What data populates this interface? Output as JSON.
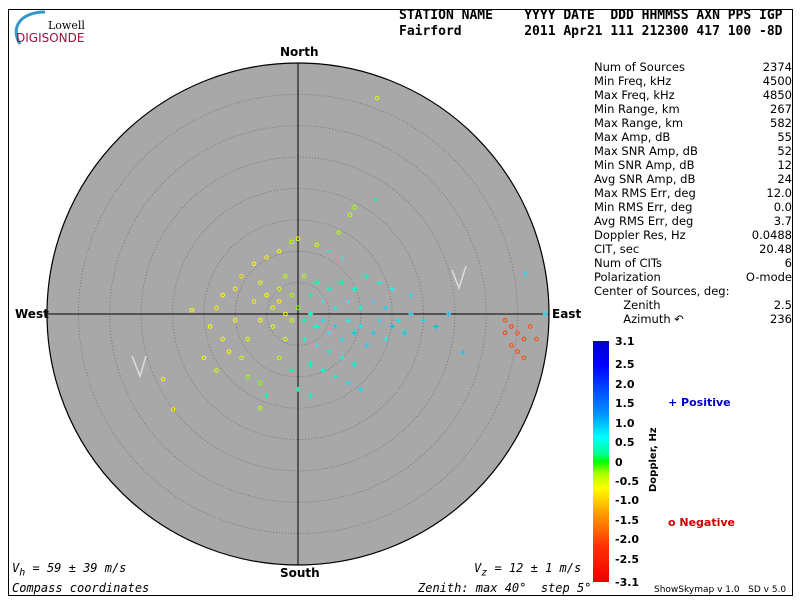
{
  "logo": {
    "line1": "Lowell",
    "line2": "DIGISONDE"
  },
  "header": {
    "labels": "STATION NAME    YYYY DATE  DDD HHMMSS AXN PPS IGP",
    "values": "Fairford        2011 Apr21 111 212300 417 100 -8D"
  },
  "stats": [
    {
      "label": "Num of Sources",
      "value": "2374"
    },
    {
      "label": "Min Freq, kHz",
      "value": "4500"
    },
    {
      "label": "Max Freq, kHz",
      "value": "4850"
    },
    {
      "label": "Min Range, km",
      "value": "267"
    },
    {
      "label": "Max Range, km",
      "value": "582"
    },
    {
      "label": "Max Amp, dB",
      "value": "55"
    },
    {
      "label": "Max SNR Amp, dB",
      "value": "52"
    },
    {
      "label": "Min SNR Amp, dB",
      "value": "12"
    },
    {
      "label": "Avg SNR Amp, dB",
      "value": "24"
    },
    {
      "label": "Max RMS Err, deg",
      "value": "12.0"
    },
    {
      "label": "Min RMS Err, deg",
      "value": "0.0"
    },
    {
      "label": "Avg RMS Err, deg",
      "value": "3.7"
    },
    {
      "label": "Doppler Res, Hz",
      "value": "0.0488"
    },
    {
      "label": "CIT, sec",
      "value": "20.48"
    },
    {
      "label": "Num of CITs",
      "value": "6"
    },
    {
      "label": "Polarization",
      "value": "O-mode"
    },
    {
      "label": "Center of Sources, deg:",
      "value": ""
    },
    {
      "label": "        Zenith",
      "value": "2.5"
    },
    {
      "label": "        Azimuth ↶",
      "value": "236"
    }
  ],
  "compass": {
    "north": "North",
    "south": "South",
    "east": "East",
    "west": "West"
  },
  "footer": {
    "vh": "V",
    "vh_sub": "h",
    "vh_val": " = 59 ± 39 m/s",
    "vz": "V",
    "vz_sub": "z",
    "vz_val": " = 12 ± 1 m/s",
    "coords": "Compass coordinates",
    "zenith": "Zenith: max 40°  step 5°",
    "version": "ShowSkymap v 1.0   SD v 5.0"
  },
  "legend": {
    "positive": "+ Positive",
    "negative": "o Negative",
    "positive_color": "#0000cc",
    "negative_color": "#cc0000"
  },
  "chart_data": {
    "type": "scatter",
    "projection": "polar skymap, compass coordinates",
    "zenith_max_deg": 40,
    "zenith_step_deg": 5,
    "colorbar": {
      "label": "Doppler, Hz",
      "range": [
        -3.1,
        3.1
      ],
      "ticks": [
        "3.1",
        "2.5",
        "2.0",
        "1.5",
        "1.0",
        "0.5",
        "0",
        "-0.5",
        "-1.0",
        "-1.5",
        "-2.0",
        "-2.5",
        "-3.1"
      ]
    },
    "point_format": [
      "east_deg",
      "north_deg",
      "doppler_hz"
    ],
    "points": [
      [
        12.6,
        34.4,
        -0.6
      ],
      [
        8.3,
        15.8,
        -0.5
      ],
      [
        12.4,
        18.2,
        0.4
      ],
      [
        9,
        17,
        -0.4
      ],
      [
        6.5,
        13,
        -0.5
      ],
      [
        0,
        12,
        -0.7
      ],
      [
        -1,
        11.5,
        -0.5
      ],
      [
        3,
        11,
        -0.6
      ],
      [
        5,
        10,
        0.6
      ],
      [
        7,
        9,
        0.7
      ],
      [
        -3,
        10,
        -0.8
      ],
      [
        -5,
        9,
        -0.9
      ],
      [
        -7,
        8,
        -0.8
      ],
      [
        -9,
        6,
        -1.0
      ],
      [
        -10,
        4,
        -0.9
      ],
      [
        -12,
        3,
        -0.8
      ],
      [
        -13,
        1,
        -0.9
      ],
      [
        -16.9,
        0.6,
        -0.8
      ],
      [
        -14,
        -2,
        -0.8
      ],
      [
        -12,
        -4,
        -0.7
      ],
      [
        -11,
        -6,
        -0.8
      ],
      [
        -9,
        -7,
        -0.6
      ],
      [
        -8,
        -10,
        -0.4
      ],
      [
        -6,
        -11,
        -0.3
      ],
      [
        -5,
        -13,
        0.5
      ],
      [
        -21.5,
        -10.4,
        -0.9
      ],
      [
        -19.9,
        -15.2,
        -0.9
      ],
      [
        -15,
        -7,
        -0.7
      ],
      [
        -6,
        5,
        -0.7
      ],
      [
        -5,
        3,
        -0.8
      ],
      [
        -4,
        1,
        -0.7
      ],
      [
        -3,
        2,
        -0.9
      ],
      [
        -2,
        0,
        -0.8
      ],
      [
        -1,
        -1,
        -0.6
      ],
      [
        -4,
        -2,
        -0.7
      ],
      [
        -6,
        -1,
        -0.8
      ],
      [
        -7,
        2,
        -0.9
      ],
      [
        -3,
        4,
        -0.6
      ],
      [
        -2,
        6,
        -0.5
      ],
      [
        -1,
        3,
        -0.4
      ],
      [
        0,
        1,
        -0.3
      ],
      [
        1,
        -1,
        0.5
      ],
      [
        2,
        0,
        0.8
      ],
      [
        3,
        -2,
        0.9
      ],
      [
        4,
        -1,
        1.0
      ],
      [
        5,
        -3,
        0.9
      ],
      [
        6,
        -2,
        1.1
      ],
      [
        7,
        -4,
        1.0
      ],
      [
        8,
        -1,
        0.9
      ],
      [
        9,
        -3,
        1.2
      ],
      [
        10,
        -2,
        1.0
      ],
      [
        11,
        -5,
        1.1
      ],
      [
        12,
        -3,
        1.2
      ],
      [
        13,
        -1,
        1.0
      ],
      [
        14,
        -4,
        0.9
      ],
      [
        15,
        -2,
        1.3
      ],
      [
        3,
        -5,
        0.8
      ],
      [
        5,
        -6,
        0.7
      ],
      [
        7,
        -7,
        0.9
      ],
      [
        9,
        -8,
        1.0
      ],
      [
        2,
        -8,
        0.6
      ],
      [
        4,
        -9,
        0.8
      ],
      [
        6,
        -10,
        0.7
      ],
      [
        8,
        -11,
        1.0
      ],
      [
        10,
        -12,
        1.1
      ],
      [
        1,
        -4,
        0.6
      ],
      [
        2,
        3,
        0.5
      ],
      [
        4,
        2,
        0.7
      ],
      [
        6,
        1,
        0.8
      ],
      [
        8,
        2,
        0.9
      ],
      [
        10,
        1,
        0.8
      ],
      [
        12,
        2,
        1.0
      ],
      [
        14,
        1,
        1.1
      ],
      [
        16,
        -1,
        1.0
      ],
      [
        17,
        -3,
        1.2
      ],
      [
        18,
        0,
        1.1
      ],
      [
        3,
        5,
        0.4
      ],
      [
        5,
        4,
        0.6
      ],
      [
        7,
        5,
        0.5
      ],
      [
        9,
        4,
        0.7
      ],
      [
        11,
        6,
        0.6
      ],
      [
        13,
        5,
        0.8
      ],
      [
        15,
        4,
        0.9
      ],
      [
        18,
        3,
        1.0
      ],
      [
        20,
        -1,
        1.1
      ],
      [
        22,
        -2,
        1.3
      ],
      [
        24,
        0,
        1.2
      ],
      [
        26.3,
        -6.1,
        1.2
      ],
      [
        36.2,
        6.5,
        1.0
      ],
      [
        39.4,
        0,
        1.0
      ],
      [
        -1,
        -9,
        0.4
      ],
      [
        0,
        -12,
        0.5
      ],
      [
        2,
        -13,
        0.6
      ],
      [
        -3,
        -7,
        -0.5
      ],
      [
        -2,
        -4,
        -0.6
      ],
      [
        1,
        6,
        -0.5
      ],
      [
        -8,
        -4,
        -0.7
      ],
      [
        -10,
        -1,
        -0.8
      ],
      [
        -13,
        -9,
        -0.6
      ],
      [
        -6,
        -15,
        -0.5
      ],
      [
        33,
        -1,
        -2.2
      ],
      [
        34,
        -2,
        -2.3
      ],
      [
        35,
        -3,
        -2.1
      ],
      [
        36,
        -4,
        -2.4
      ],
      [
        34,
        -5,
        -2.2
      ],
      [
        35,
        -6,
        -2.3
      ],
      [
        37,
        -2,
        -2.2
      ],
      [
        36,
        -7,
        -2.1
      ],
      [
        33,
        -3,
        -2.3
      ],
      [
        38,
        -4,
        -2.2
      ]
    ]
  }
}
